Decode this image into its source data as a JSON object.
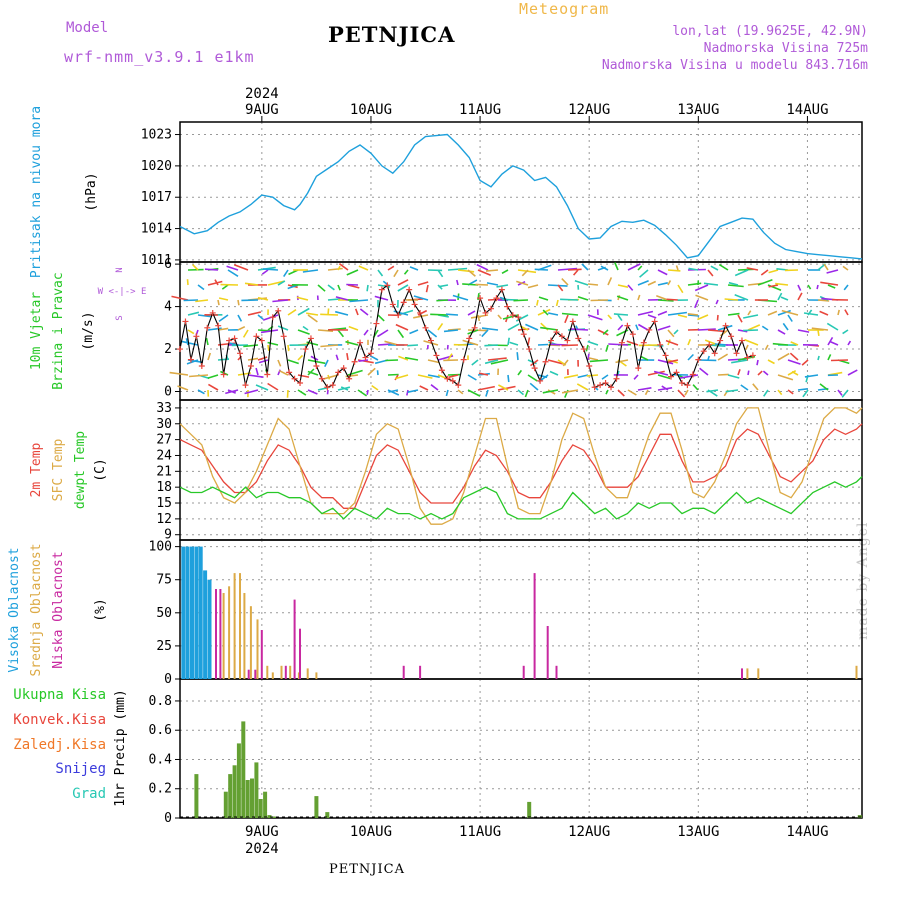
{
  "header": {
    "model_label": "Model",
    "model_name": "wrf-nmm_v3.9.1 e1km",
    "station": "PETNJICA",
    "meteogram": "Meteogram",
    "coords": "lon,lat (19.9625E, 42.9N)",
    "elevation": "Nadmorska Visina 725m",
    "model_elevation": "Nadmorska Visina u modelu 843.716m"
  },
  "footer": {
    "station": "PETNJICA",
    "credit": "made by Angel"
  },
  "colors": {
    "pressure": "#1ea0dc",
    "wind_label": "#28c828",
    "temp2m": "#e8463c",
    "sfc": "#dcaa46",
    "dewpt": "#28c828",
    "high_cloud": "#1ea0dc",
    "mid_cloud": "#dcaa46",
    "low_cloud": "#c828a0",
    "total_precip": "#28c828",
    "conv_precip": "#e8463c",
    "freezing": "#f07828",
    "snow": "#3c3cdc",
    "graupel": "#28c8b4",
    "compass": "#b05ad8"
  },
  "chart_data": [
    {
      "type": "line",
      "name": "pressure",
      "top_date_labels": [
        "9AUG",
        "10AUG",
        "11AUG",
        "12AUG",
        "13AUG",
        "14AUG"
      ],
      "year_label": "2024",
      "ylabel_main": "Pritisak na nivou mora",
      "unit": "(hPa)",
      "yticks": [
        1011,
        1014,
        1017,
        1020,
        1023
      ],
      "ylim": [
        1010.8,
        1024.2
      ],
      "xlim": [
        -0.75,
        5.5
      ],
      "x": [
        -0.75,
        -0.62,
        -0.5,
        -0.4,
        -0.3,
        -0.2,
        -0.1,
        0.0,
        0.1,
        0.2,
        0.3,
        0.35,
        0.42,
        0.5,
        0.6,
        0.7,
        0.8,
        0.9,
        1.0,
        1.1,
        1.2,
        1.3,
        1.4,
        1.5,
        1.6,
        1.7,
        1.8,
        1.9,
        2.0,
        2.1,
        2.2,
        2.3,
        2.4,
        2.5,
        2.6,
        2.7,
        2.8,
        2.9,
        3.0,
        3.1,
        3.2,
        3.3,
        3.4,
        3.5,
        3.6,
        3.7,
        3.8,
        3.9,
        4.0,
        4.1,
        4.2,
        4.3,
        4.4,
        4.5,
        4.6,
        4.7,
        4.8,
        4.9,
        5.0,
        5.1,
        5.2,
        5.3,
        5.4,
        5.5
      ],
      "y": [
        1014.2,
        1013.5,
        1013.8,
        1014.6,
        1015.2,
        1015.6,
        1016.3,
        1017.2,
        1017.0,
        1016.2,
        1015.8,
        1016.3,
        1017.4,
        1019.0,
        1019.7,
        1020.4,
        1021.4,
        1022.0,
        1021.2,
        1020.0,
        1019.3,
        1020.4,
        1022.0,
        1022.8,
        1022.9,
        1023.0,
        1022.0,
        1020.8,
        1018.6,
        1018.0,
        1019.2,
        1020.0,
        1019.6,
        1018.6,
        1018.9,
        1018.0,
        1016.2,
        1014.0,
        1013.0,
        1013.1,
        1014.2,
        1014.7,
        1014.6,
        1014.8,
        1014.3,
        1013.4,
        1012.4,
        1011.2,
        1011.4,
        1012.8,
        1014.2,
        1014.6,
        1015.0,
        1014.9,
        1013.6,
        1012.6,
        1012.0,
        1011.8,
        1011.6,
        1011.5,
        1011.4,
        1011.3,
        1011.2,
        1011.1
      ]
    },
    {
      "type": "line",
      "name": "wind",
      "ylabel_main": "10m Vjetar",
      "ylabel_sub": "Brzina i Pravac",
      "unit": "(m/s)",
      "compass": [
        "N",
        "W <-|-> E",
        "S"
      ],
      "yticks": [
        0,
        2,
        4,
        6
      ],
      "ylim": [
        -0.4,
        6.1
      ],
      "xlim": [
        -0.75,
        5.5
      ],
      "x": [
        -0.75,
        -0.7,
        -0.65,
        -0.6,
        -0.55,
        -0.5,
        -0.45,
        -0.4,
        -0.35,
        -0.3,
        -0.25,
        -0.2,
        -0.15,
        -0.1,
        -0.05,
        0.0,
        0.05,
        0.1,
        0.15,
        0.2,
        0.25,
        0.3,
        0.35,
        0.4,
        0.45,
        0.5,
        0.55,
        0.6,
        0.65,
        0.7,
        0.75,
        0.8,
        0.85,
        0.9,
        0.95,
        1.0,
        1.05,
        1.1,
        1.15,
        1.2,
        1.25,
        1.3,
        1.35,
        1.4,
        1.45,
        1.5,
        1.55,
        1.6,
        1.65,
        1.7,
        1.75,
        1.8,
        1.85,
        1.9,
        1.95,
        2.0,
        2.05,
        2.1,
        2.15,
        2.2,
        2.25,
        2.3,
        2.35,
        2.4,
        2.45,
        2.5,
        2.55,
        2.6,
        2.65,
        2.7,
        2.75,
        2.8,
        2.85,
        2.9,
        2.95,
        3.0,
        3.05,
        3.1,
        3.15,
        3.2,
        3.25,
        3.3,
        3.35,
        3.4,
        3.45,
        3.5,
        3.55,
        3.6,
        3.65,
        3.7,
        3.75,
        3.8,
        3.85,
        3.9,
        3.95,
        4.0,
        4.05,
        4.1,
        4.15,
        4.2,
        4.25,
        4.3,
        4.35,
        4.4,
        4.45,
        4.5
      ],
      "y": [
        2.0,
        3.3,
        1.5,
        2.6,
        1.2,
        3.0,
        3.7,
        3.1,
        0.8,
        2.4,
        2.5,
        1.8,
        0.3,
        1.2,
        2.6,
        2.4,
        0.8,
        3.5,
        3.8,
        2.6,
        0.9,
        0.6,
        0.4,
        2.0,
        2.5,
        1.2,
        0.6,
        0.2,
        0.3,
        0.9,
        1.1,
        0.6,
        1.4,
        2.3,
        1.6,
        1.8,
        3.2,
        4.8,
        5.0,
        4.1,
        3.6,
        4.2,
        4.8,
        4.1,
        3.7,
        3.0,
        2.4,
        1.7,
        1.0,
        0.6,
        0.5,
        0.3,
        1.5,
        2.5,
        3.0,
        4.4,
        3.7,
        3.9,
        4.4,
        4.8,
        4.0,
        3.6,
        3.5,
        2.7,
        2.0,
        1.1,
        0.5,
        1.4,
        2.4,
        2.8,
        2.6,
        2.4,
        3.3,
        2.5,
        2.0,
        1.2,
        0.2,
        0.3,
        0.4,
        0.2,
        0.6,
        2.3,
        3.1,
        2.7,
        1.1,
        2.3,
        2.9,
        3.3,
        2.2,
        1.7,
        0.7,
        0.9,
        0.4,
        0.3,
        0.8,
        1.5,
        1.9,
        2.2,
        1.8,
        2.4,
        3.1,
        2.6,
        1.8,
        2.4,
        1.6,
        1.7
      ]
    },
    {
      "type": "line",
      "name": "temperature",
      "ylabel_2m": "2m Temp",
      "ylabel_sfc": "SFC Temp",
      "ylabel_dew": "dewpt Temp",
      "unit": "(C)",
      "yticks": [
        9,
        12,
        15,
        18,
        21,
        24,
        27,
        30,
        33
      ],
      "ylim": [
        8,
        34.5
      ],
      "xlim": [
        -0.75,
        5.5
      ],
      "x": [
        -0.75,
        -0.65,
        -0.55,
        -0.45,
        -0.35,
        -0.25,
        -0.15,
        -0.05,
        0.05,
        0.15,
        0.25,
        0.35,
        0.45,
        0.55,
        0.65,
        0.75,
        0.85,
        0.95,
        1.05,
        1.15,
        1.25,
        1.35,
        1.45,
        1.55,
        1.65,
        1.75,
        1.85,
        1.95,
        2.05,
        2.15,
        2.25,
        2.35,
        2.45,
        2.55,
        2.65,
        2.75,
        2.85,
        2.95,
        3.05,
        3.15,
        3.25,
        3.35,
        3.45,
        3.55,
        3.65,
        3.75,
        3.85,
        3.95,
        4.05,
        4.15,
        4.25,
        4.35,
        4.45,
        4.55,
        4.65,
        4.75,
        4.85,
        4.95,
        5.05,
        5.15,
        5.25,
        5.35,
        5.45,
        5.5
      ],
      "series": [
        {
          "name": "2m Temp",
          "values": [
            27,
            26,
            25,
            22,
            19,
            17,
            17,
            19,
            23,
            26,
            25,
            22,
            18,
            16,
            16,
            14,
            14,
            19,
            24,
            26,
            25,
            21,
            17,
            15,
            15,
            15,
            18,
            22,
            25,
            24,
            21,
            17,
            16,
            16,
            19,
            23,
            26,
            25,
            22,
            18,
            18,
            18,
            20,
            24,
            28,
            28,
            23,
            19,
            19,
            20,
            22,
            27,
            29,
            28,
            24,
            20,
            19,
            21,
            23,
            27,
            29,
            28,
            29,
            30
          ]
        },
        {
          "name": "SFC Temp",
          "values": [
            30,
            28,
            26,
            20,
            16,
            15,
            17,
            21,
            26,
            31,
            29,
            22,
            15,
            13,
            13,
            13,
            15,
            21,
            28,
            30,
            29,
            22,
            14,
            11,
            11,
            12,
            17,
            24,
            31,
            31,
            22,
            14,
            13,
            13,
            19,
            27,
            32,
            31,
            24,
            18,
            16,
            16,
            22,
            28,
            32,
            32,
            25,
            17,
            16,
            19,
            24,
            30,
            33,
            33,
            25,
            17,
            16,
            19,
            25,
            31,
            33,
            33,
            32,
            33
          ]
        },
        {
          "name": "dewpt Temp",
          "values": [
            18,
            17,
            17,
            18,
            17,
            16,
            18,
            16,
            17,
            17,
            16,
            16,
            15,
            13,
            14,
            12,
            14,
            13,
            12,
            14,
            13,
            13,
            12,
            13,
            12,
            13,
            16,
            17,
            18,
            17,
            13,
            12,
            12,
            12,
            13,
            14,
            17,
            15,
            13,
            14,
            12,
            13,
            15,
            14,
            15,
            15,
            13,
            14,
            14,
            13,
            15,
            17,
            15,
            16,
            15,
            14,
            13,
            15,
            17,
            18,
            19,
            18,
            19,
            20
          ]
        }
      ]
    },
    {
      "type": "bar",
      "name": "cloud_cover",
      "ylabel_high": "Visoka Oblacnost",
      "ylabel_mid": "Srednja Oblacnost",
      "ylabel_low": "Niska Oblacnost",
      "unit": "(%)",
      "yticks": [
        0,
        25,
        50,
        75,
        100
      ],
      "ylim": [
        0,
        105
      ],
      "xlim": [
        -0.75,
        5.5
      ],
      "series": [
        {
          "name": "Visoka Oblacnost",
          "x": [
            -0.72,
            -0.68,
            -0.64,
            -0.6,
            -0.56,
            -0.52,
            -0.48
          ],
          "values": [
            100,
            100,
            100,
            100,
            100,
            82,
            75
          ]
        },
        {
          "name": "Srednja Oblacnost",
          "x": [
            -0.35,
            -0.3,
            -0.25,
            -0.2,
            -0.16,
            -0.1,
            -0.04,
            0.05,
            0.1,
            0.18,
            0.26,
            0.34,
            0.42,
            0.5,
            4.45,
            4.55,
            5.45
          ],
          "values": [
            65,
            70,
            80,
            80,
            65,
            55,
            45,
            10,
            5,
            10,
            10,
            5,
            8,
            5,
            8,
            8,
            10
          ]
        },
        {
          "name": "Niska Oblacnost",
          "x": [
            -0.42,
            -0.38,
            -0.12,
            -0.06,
            0.0,
            0.22,
            0.3,
            0.35,
            1.3,
            1.45,
            2.4,
            2.5,
            2.62,
            2.7,
            4.4
          ],
          "values": [
            68,
            68,
            7,
            7,
            37,
            10,
            60,
            38,
            10,
            10,
            10,
            80,
            40,
            10,
            8
          ]
        }
      ]
    },
    {
      "type": "bar",
      "name": "precipitation",
      "ylabel": "1hr Precip (mm)",
      "legend": [
        "Ukupna Kisa",
        "Konvek.Kisa",
        "Zaledj.Kisa",
        "Snijeg",
        "Grad"
      ],
      "bottom_date_labels": [
        "9AUG",
        "10AUG",
        "11AUG",
        "12AUG",
        "13AUG",
        "14AUG"
      ],
      "year_label": "2024",
      "yticks": [
        0,
        0.2,
        0.4,
        0.6,
        0.8
      ],
      "ylim": [
        0,
        0.95
      ],
      "xlim": [
        -0.75,
        5.5
      ],
      "series": [
        {
          "name": "Ukupna Kisa",
          "x": [
            -0.6,
            -0.33,
            -0.29,
            -0.25,
            -0.21,
            -0.17,
            -0.13,
            -0.09,
            -0.05,
            -0.01,
            0.03,
            0.07,
            0.11,
            0.5,
            0.6,
            2.45,
            5.48
          ],
          "values": [
            0.3,
            0.18,
            0.3,
            0.36,
            0.51,
            0.66,
            0.26,
            0.27,
            0.38,
            0.13,
            0.18,
            0.02,
            0.01,
            0.15,
            0.04,
            0.11,
            0.02
          ]
        }
      ]
    }
  ]
}
